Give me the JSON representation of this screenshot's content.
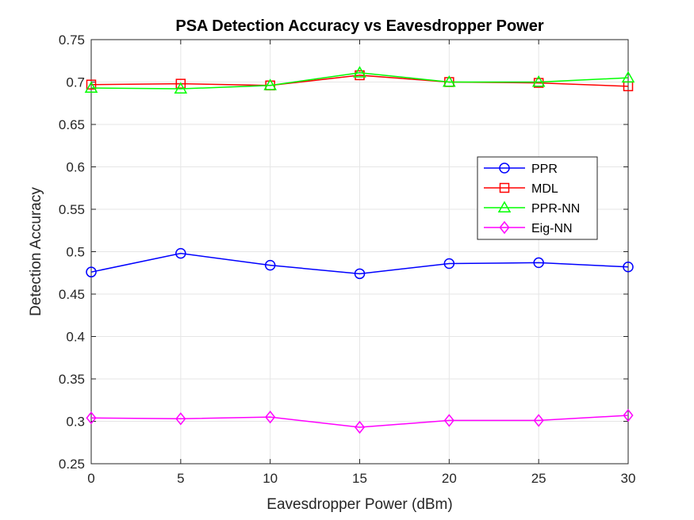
{
  "chart_data": {
    "type": "line",
    "title": "PSA Detection Accuracy vs Eavesdropper Power",
    "xlabel": "Eavesdropper Power (dBm)",
    "ylabel": "Detection Accuracy",
    "x": [
      0,
      5,
      10,
      15,
      20,
      25,
      30
    ],
    "xlim": [
      0,
      30
    ],
    "ylim": [
      0.25,
      0.75
    ],
    "xticks": [
      "0",
      "5",
      "10",
      "15",
      "20",
      "25",
      "30"
    ],
    "yticks": [
      "0.25",
      "0.3",
      "0.35",
      "0.4",
      "0.45",
      "0.5",
      "0.55",
      "0.6",
      "0.65",
      "0.7",
      "0.75"
    ],
    "grid": true,
    "legend_position": "right",
    "series": [
      {
        "name": "PPR",
        "color": "#0000ff",
        "marker": "circle",
        "values": [
          0.476,
          0.498,
          0.484,
          0.474,
          0.486,
          0.487,
          0.482
        ]
      },
      {
        "name": "MDL",
        "color": "#ff0000",
        "marker": "square",
        "values": [
          0.697,
          0.698,
          0.696,
          0.708,
          0.7,
          0.699,
          0.695
        ]
      },
      {
        "name": "PPR-NN",
        "color": "#00ff00",
        "marker": "triangle",
        "values": [
          0.693,
          0.692,
          0.696,
          0.711,
          0.7,
          0.7,
          0.705
        ]
      },
      {
        "name": "Eig-NN",
        "color": "#ff00ff",
        "marker": "diamond",
        "values": [
          0.304,
          0.303,
          0.305,
          0.293,
          0.301,
          0.301,
          0.307
        ]
      }
    ]
  }
}
